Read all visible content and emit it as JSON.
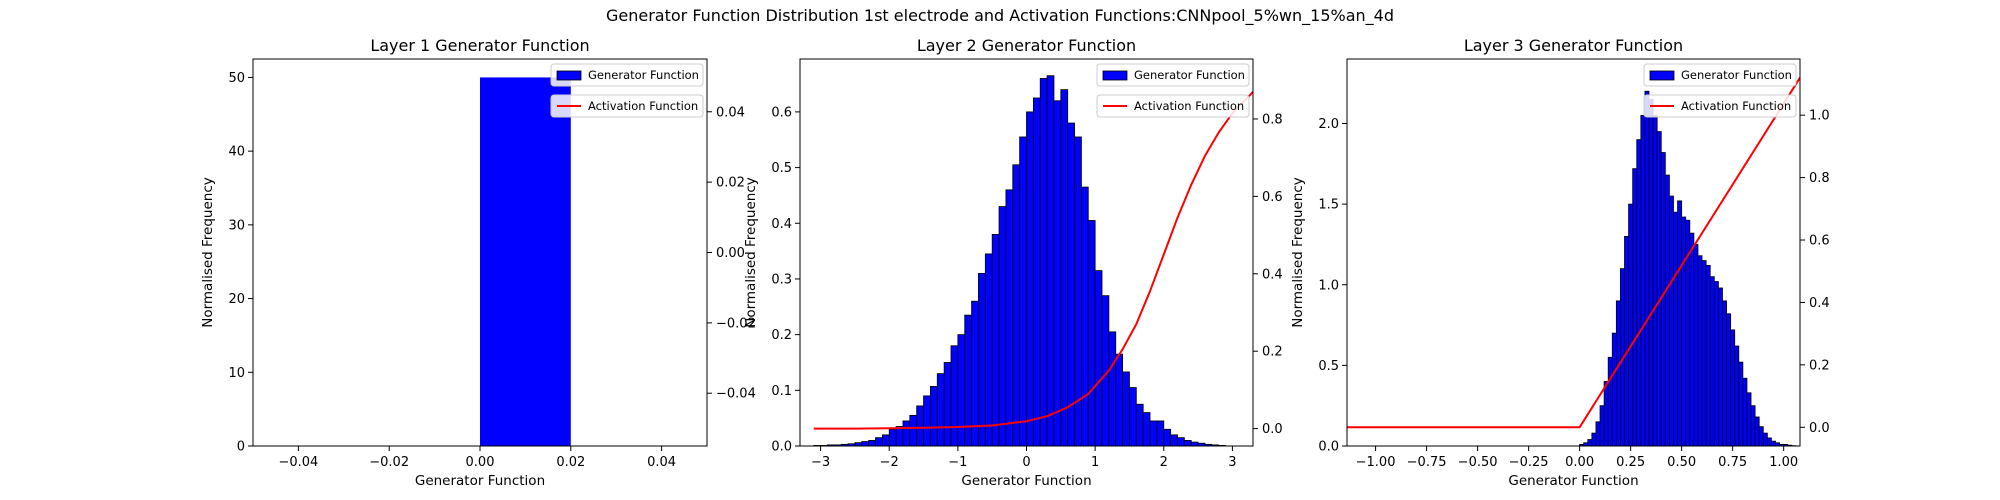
{
  "figure": {
    "suptitle": "Generator Function Distribution 1st electrode and Activation Functions:CNNpool_5%wn_15%an_4d"
  },
  "colors": {
    "histogram": "#0000ff",
    "activation": "#ff0000",
    "edge": "#000000"
  },
  "chart_data": [
    {
      "type": "bar",
      "title": "Layer 1 Generator Function",
      "xlabel": "Generator Function",
      "ylabel": "Normalised Frequency",
      "xlim": [
        -0.05,
        0.05
      ],
      "ylim": [
        0,
        52.5
      ],
      "y2lim": [
        -0.055,
        0.055
      ],
      "xticks": [
        -0.04,
        -0.02,
        0.0,
        0.02,
        0.04
      ],
      "xticklabels": [
        "−0.04",
        "−0.02",
        "0.00",
        "0.02",
        "0.04"
      ],
      "yticks": [
        0,
        10,
        20,
        30,
        40,
        50
      ],
      "yticklabels": [
        "0",
        "10",
        "20",
        "30",
        "40",
        "50"
      ],
      "y2ticks": [
        -0.04,
        -0.02,
        0.0,
        0.02,
        0.04
      ],
      "y2ticklabels": [
        "−0.04",
        "−0.02",
        "0.00",
        "0.02",
        "0.04"
      ],
      "legend": [
        "Generator Function",
        "Activation Function"
      ],
      "legend_position": "top-right",
      "histogram": {
        "bins": [
          [
            0.0,
            0.02
          ]
        ],
        "values": [
          50
        ]
      },
      "activation": []
    },
    {
      "type": "bar",
      "title": "Layer 2 Generator Function",
      "xlabel": "Generator Function",
      "ylabel": "Normalised Frequency",
      "xlim": [
        -3.3,
        3.3
      ],
      "ylim": [
        0,
        0.695
      ],
      "y2lim": [
        -0.045,
        0.955
      ],
      "xticks": [
        -3,
        -2,
        -1,
        0,
        1,
        2,
        3
      ],
      "xticklabels": [
        "−3",
        "−2",
        "−1",
        "0",
        "1",
        "2",
        "3"
      ],
      "yticks": [
        0,
        0.1,
        0.2,
        0.3,
        0.4,
        0.5,
        0.6
      ],
      "yticklabels": [
        "0.0",
        "0.1",
        "0.2",
        "0.3",
        "0.4",
        "0.5",
        "0.6"
      ],
      "y2ticks": [
        0,
        0.2,
        0.4,
        0.6,
        0.8
      ],
      "y2ticklabels": [
        "0.0",
        "0.2",
        "0.4",
        "0.6",
        "0.8"
      ],
      "legend": [
        "Generator Function",
        "Activation Function"
      ],
      "legend_position": "top-right",
      "histogram": {
        "start": -3.1,
        "width": 0.1,
        "values": [
          0.001,
          0.001,
          0.002,
          0.002,
          0.003,
          0.004,
          0.006,
          0.008,
          0.01,
          0.015,
          0.02,
          0.03,
          0.035,
          0.045,
          0.055,
          0.072,
          0.09,
          0.107,
          0.13,
          0.15,
          0.18,
          0.2,
          0.235,
          0.26,
          0.31,
          0.345,
          0.38,
          0.43,
          0.46,
          0.505,
          0.555,
          0.6,
          0.625,
          0.66,
          0.665,
          0.62,
          0.64,
          0.58,
          0.555,
          0.465,
          0.405,
          0.315,
          0.27,
          0.205,
          0.165,
          0.133,
          0.105,
          0.075,
          0.06,
          0.045,
          0.045,
          0.03,
          0.02,
          0.015,
          0.01,
          0.007,
          0.005,
          0.003,
          0.002,
          0.001
        ]
      },
      "activation": {
        "x": [
          -3.1,
          -2.5,
          -2.0,
          -1.5,
          -1.0,
          -0.5,
          0.0,
          0.3,
          0.6,
          0.9,
          1.2,
          1.4,
          1.6,
          1.8,
          2.0,
          2.2,
          2.4,
          2.6,
          2.8,
          3.0,
          3.3
        ],
        "y": [
          0.0,
          0.0,
          0.001,
          0.002,
          0.004,
          0.008,
          0.019,
          0.032,
          0.055,
          0.09,
          0.15,
          0.205,
          0.27,
          0.355,
          0.45,
          0.545,
          0.63,
          0.705,
          0.765,
          0.815,
          0.87
        ]
      }
    },
    {
      "type": "bar",
      "title": "Layer 3 Generator Function",
      "xlabel": "Generator Function",
      "ylabel": "Normalised Frequency",
      "xlim": [
        -1.14,
        1.08
      ],
      "ylim": [
        0,
        2.4
      ],
      "y2lim": [
        -0.06,
        1.18
      ],
      "xticks": [
        -1.0,
        -0.75,
        -0.5,
        -0.25,
        0.0,
        0.25,
        0.5,
        0.75,
        1.0
      ],
      "xticklabels": [
        "−1.00",
        "−0.75",
        "−0.50",
        "−0.25",
        "0.00",
        "0.25",
        "0.50",
        "0.75",
        "1.00"
      ],
      "yticks": [
        0,
        0.5,
        1.0,
        1.5,
        2.0
      ],
      "yticklabels": [
        "0.0",
        "0.5",
        "1.0",
        "1.5",
        "2.0"
      ],
      "y2ticks": [
        0,
        0.2,
        0.4,
        0.6,
        0.8,
        1.0
      ],
      "y2ticklabels": [
        "0.0",
        "0.2",
        "0.4",
        "0.6",
        "0.8",
        "1.0"
      ],
      "legend": [
        "Generator Function",
        "Activation Function"
      ],
      "legend_position": "top-right",
      "histogram": {
        "start": 0.0,
        "width": 0.02,
        "values": [
          0.01,
          0.02,
          0.04,
          0.08,
          0.15,
          0.25,
          0.4,
          0.55,
          0.7,
          0.9,
          1.1,
          1.3,
          1.5,
          1.72,
          1.9,
          2.05,
          2.2,
          2.15,
          2.05,
          1.95,
          1.82,
          1.68,
          1.55,
          1.45,
          1.52,
          1.42,
          1.4,
          1.32,
          1.25,
          1.18,
          1.15,
          1.12,
          1.05,
          1.02,
          0.98,
          0.9,
          0.82,
          0.72,
          0.62,
          0.52,
          0.42,
          0.33,
          0.25,
          0.18,
          0.12,
          0.08,
          0.05,
          0.03,
          0.02,
          0.01,
          0.01,
          0.005,
          0.002
        ]
      },
      "activation": {
        "x": [
          -1.14,
          0.0,
          1.08
        ],
        "y": [
          0.0,
          0.0,
          1.12
        ]
      }
    }
  ]
}
